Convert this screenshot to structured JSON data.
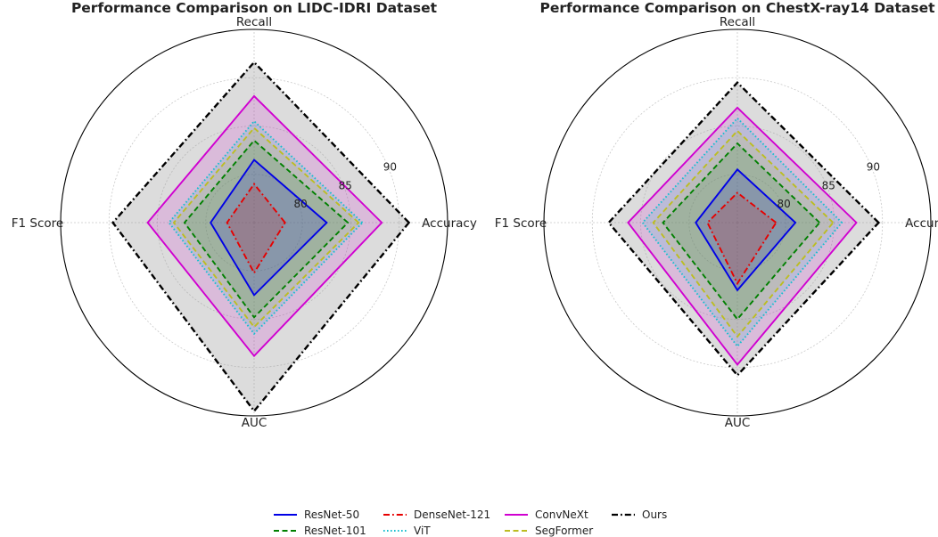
{
  "chart_data": [
    {
      "type": "radar",
      "title": "Performance Comparison on LIDC-IDRI Dataset",
      "axes": [
        "Accuracy",
        "Recall",
        "F1 Score",
        "AUC"
      ],
      "radial_ticks": [
        80,
        85,
        90
      ],
      "rlim": [
        75,
        95
      ],
      "series": [
        {
          "name": "ResNet-50",
          "values": [
            82.5,
            81.5,
            79.5,
            82.5
          ]
        },
        {
          "name": "ResNet-101",
          "values": [
            84.7,
            83.5,
            82.2,
            84.8
          ]
        },
        {
          "name": "ViT",
          "values": [
            86.2,
            85.5,
            83.8,
            86.5
          ]
        },
        {
          "name": "SegFormer",
          "values": [
            85.8,
            84.8,
            83.3,
            85.8
          ]
        },
        {
          "name": "DenseNet-121",
          "values": [
            78.2,
            79.0,
            77.8,
            80.2
          ]
        },
        {
          "name": "ConvNeXt",
          "values": [
            88.2,
            88.1,
            86.0,
            88.8
          ]
        },
        {
          "name": "Ours",
          "values": [
            91.0,
            91.6,
            89.6,
            94.5
          ]
        }
      ]
    },
    {
      "type": "radar",
      "title": "Performance Comparison on ChestX-ray14 Dataset",
      "axes": [
        "Accuracy",
        "Recall",
        "F1 Score",
        "AUC"
      ],
      "radial_ticks": [
        80,
        85,
        90
      ],
      "rlim": [
        75,
        95
      ],
      "series": [
        {
          "name": "ResNet-50",
          "values": [
            81.0,
            80.5,
            79.3,
            82.0
          ]
        },
        {
          "name": "ResNet-101",
          "values": [
            83.5,
            83.2,
            82.7,
            85.0
          ]
        },
        {
          "name": "ViT",
          "values": [
            85.8,
            85.8,
            84.8,
            87.8
          ]
        },
        {
          "name": "SegFormer",
          "values": [
            84.9,
            84.5,
            83.7,
            86.8
          ]
        },
        {
          "name": "DenseNet-121",
          "values": [
            79.0,
            78.1,
            78.1,
            81.3
          ]
        },
        {
          "name": "ConvNeXt",
          "values": [
            87.3,
            86.9,
            86.3,
            89.7
          ]
        },
        {
          "name": "Ours",
          "values": [
            89.6,
            89.5,
            88.3,
            90.8
          ]
        }
      ]
    }
  ],
  "legend": [
    {
      "name": "ResNet-50",
      "color": "#0000e6",
      "dash": "solid"
    },
    {
      "name": "ResNet-101",
      "color": "#008000",
      "dash": "dashed"
    },
    {
      "name": "DenseNet-121",
      "color": "#e60000",
      "dash": "dashdot"
    },
    {
      "name": "ViT",
      "color": "#17becf",
      "dash": "dotted"
    },
    {
      "name": "ConvNeXt",
      "color": "#d000d0",
      "dash": "solid"
    },
    {
      "name": "SegFormer",
      "color": "#bcbd22",
      "dash": "dashed"
    },
    {
      "name": "Ours",
      "color": "#000000",
      "dash": "dashdot"
    }
  ],
  "series_style": {
    "ResNet-50": {
      "color": "#0000e6",
      "dash": "solid",
      "fill": "#0000e6"
    },
    "ResNet-101": {
      "color": "#008000",
      "dash": "dashed",
      "fill": "#008000"
    },
    "ViT": {
      "color": "#17becf",
      "dash": "dotted",
      "fill": "#17becf"
    },
    "SegFormer": {
      "color": "#bcbd22",
      "dash": "dashed",
      "fill": "#bcbd22"
    },
    "DenseNet-121": {
      "color": "#e60000",
      "dash": "dashdot",
      "fill": "#e60000"
    },
    "ConvNeXt": {
      "color": "#d000d0",
      "dash": "solid",
      "fill": "#d000d0"
    },
    "Ours": {
      "color": "#000000",
      "dash": "dashdot",
      "fill": "#9a9a9a"
    }
  }
}
